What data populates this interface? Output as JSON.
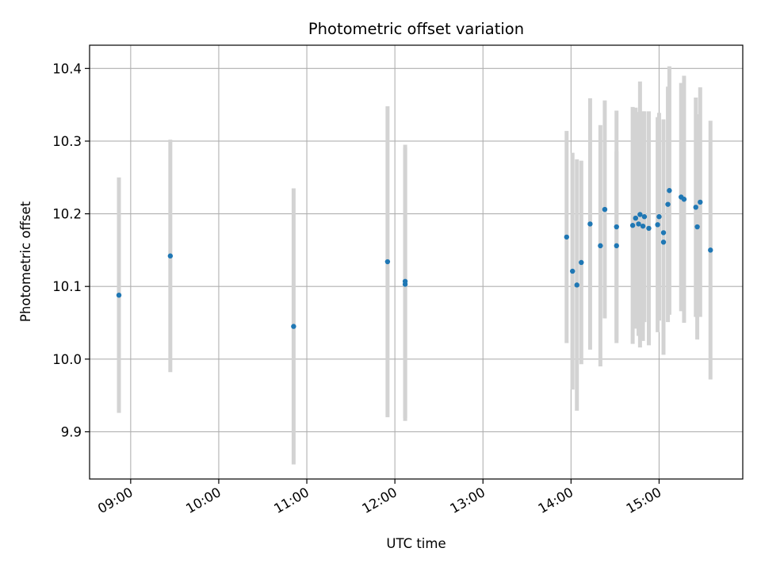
{
  "chart_data": {
    "type": "scatter",
    "title": "Photometric offset variation",
    "xlabel": "UTC time",
    "ylabel": "Photometric offset",
    "x_unit": "UTC hh:mm",
    "xlim": [
      "08:32",
      "15:57"
    ],
    "ylim": [
      9.835,
      10.432
    ],
    "grid": true,
    "x_ticks": [
      "09:00",
      "10:00",
      "11:00",
      "12:00",
      "13:00",
      "14:00",
      "15:00"
    ],
    "y_ticks": [
      9.9,
      10.0,
      10.1,
      10.2,
      10.3,
      10.4
    ],
    "y_tick_labels": [
      "9.9",
      "10.0",
      "10.1",
      "10.2",
      "10.3",
      "10.4"
    ],
    "marker_color": "#1f77b4",
    "errorbar_color": "#d3d3d3",
    "points": [
      {
        "t": "08:52",
        "y": 10.088,
        "err": 0.162
      },
      {
        "t": "09:27",
        "y": 10.142,
        "err": 0.16
      },
      {
        "t": "10:51",
        "y": 10.045,
        "err": 0.19
      },
      {
        "t": "11:55",
        "y": 10.134,
        "err": 0.214
      },
      {
        "t": "12:07",
        "y": 10.103,
        "err": 0.188
      },
      {
        "t": "12:07",
        "y": 10.107,
        "err": 0.188
      },
      {
        "t": "13:57",
        "y": 10.168,
        "err": 0.146
      },
      {
        "t": "14:01",
        "y": 10.121,
        "err": 0.163
      },
      {
        "t": "14:04",
        "y": 10.102,
        "err": 0.173
      },
      {
        "t": "14:07",
        "y": 10.133,
        "err": 0.14
      },
      {
        "t": "14:13",
        "y": 10.186,
        "err": 0.173
      },
      {
        "t": "14:20",
        "y": 10.156,
        "err": 0.166
      },
      {
        "t": "14:23",
        "y": 10.206,
        "err": 0.15
      },
      {
        "t": "14:31",
        "y": 10.182,
        "err": 0.16
      },
      {
        "t": "14:31",
        "y": 10.156,
        "err": 0.13
      },
      {
        "t": "14:42",
        "y": 10.184,
        "err": 0.163
      },
      {
        "t": "14:44",
        "y": 10.194,
        "err": 0.152
      },
      {
        "t": "14:46",
        "y": 10.186,
        "err": 0.154
      },
      {
        "t": "14:47",
        "y": 10.199,
        "err": 0.183
      },
      {
        "t": "14:49",
        "y": 10.183,
        "err": 0.158
      },
      {
        "t": "14:50",
        "y": 10.196,
        "err": 0.145
      },
      {
        "t": "14:53",
        "y": 10.18,
        "err": 0.161
      },
      {
        "t": "14:59",
        "y": 10.185,
        "err": 0.148
      },
      {
        "t": "15:00",
        "y": 10.196,
        "err": 0.143
      },
      {
        "t": "15:03",
        "y": 10.161,
        "err": 0.155
      },
      {
        "t": "15:03",
        "y": 10.174,
        "err": 0.156
      },
      {
        "t": "15:06",
        "y": 10.213,
        "err": 0.162
      },
      {
        "t": "15:07",
        "y": 10.232,
        "err": 0.171
      },
      {
        "t": "15:15",
        "y": 10.223,
        "err": 0.157
      },
      {
        "t": "15:17",
        "y": 10.22,
        "err": 0.17
      },
      {
        "t": "15:25",
        "y": 10.209,
        "err": 0.151
      },
      {
        "t": "15:26",
        "y": 10.182,
        "err": 0.155
      },
      {
        "t": "15:28",
        "y": 10.216,
        "err": 0.158
      },
      {
        "t": "15:35",
        "y": 10.15,
        "err": 0.178
      }
    ]
  }
}
